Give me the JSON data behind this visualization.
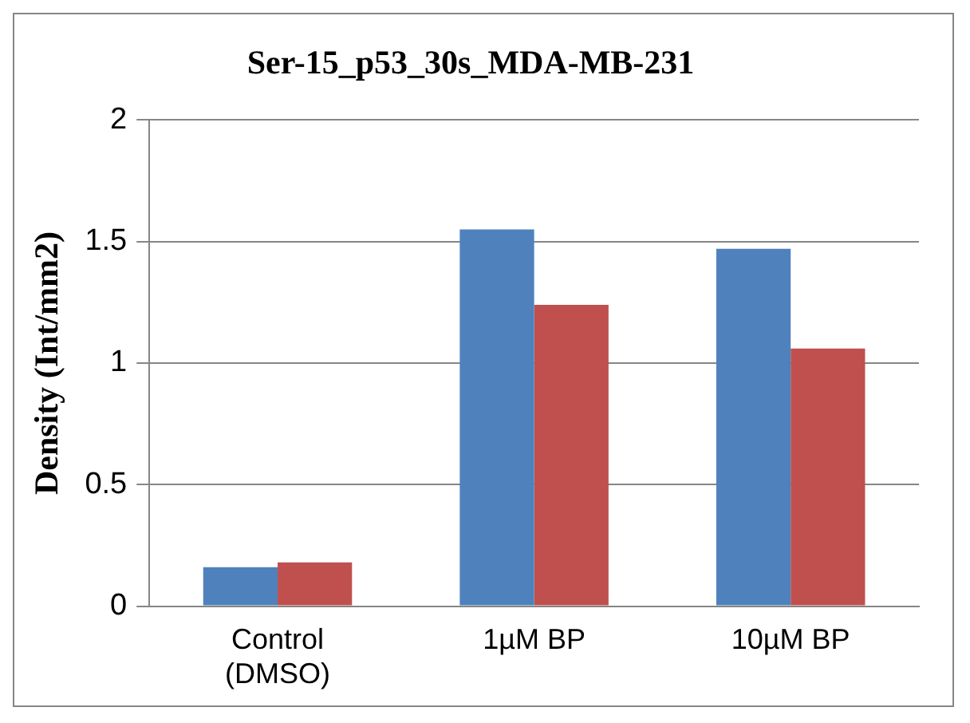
{
  "chart_data": {
    "type": "bar",
    "title": "Ser-15_p53_30s_MDA-MB-231",
    "ylabel": "Density (Int/mm2)",
    "categories": [
      "Control (DMSO)",
      "1µM BP",
      "10µM BP"
    ],
    "series": [
      {
        "color": "#4f81bd",
        "values": [
          0.16,
          1.55,
          1.47
        ]
      },
      {
        "color": "#c0504d",
        "values": [
          0.18,
          1.24,
          1.06
        ]
      }
    ],
    "ylim": [
      0,
      2
    ],
    "yticks": [
      0,
      0.5,
      1,
      1.5,
      2
    ],
    "grid": "y",
    "legend": false
  }
}
